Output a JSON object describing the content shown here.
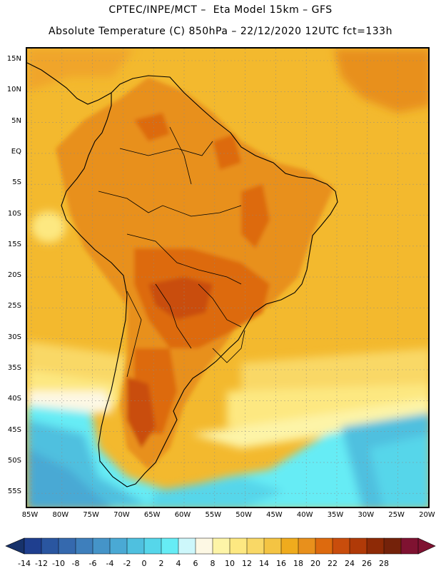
{
  "header": {
    "line1": "CPTEC/INPE/MCT –  Eta Model 15km – GFS",
    "line2": "Absolute Temperature (C) 850hPa – 22/12/2020 12UTC fct=133h"
  },
  "map": {
    "lat_labels": [
      "15N",
      "10N",
      "5N",
      "EQ",
      "5S",
      "10S",
      "15S",
      "20S",
      "25S",
      "30S",
      "35S",
      "40S",
      "45S",
      "50S",
      "55S"
    ],
    "lon_labels": [
      "85W",
      "80W",
      "75W",
      "70W",
      "65W",
      "60W",
      "55W",
      "50W",
      "45W",
      "40W",
      "35W",
      "30W",
      "25W",
      "20W"
    ]
  },
  "colorbar": {
    "labels": [
      "-14",
      "-12",
      "-10",
      "-8",
      "-6",
      "-4",
      "-2",
      "0",
      "2",
      "4",
      "6",
      "8",
      "10",
      "12",
      "14",
      "16",
      "18",
      "20",
      "22",
      "24",
      "26",
      "28"
    ],
    "colors": [
      "#1f3f8f",
      "#2a56a0",
      "#3569ae",
      "#3e7fbc",
      "#4594c8",
      "#4aa9d4",
      "#4fc0df",
      "#56d6ea",
      "#66ecf5",
      "#cdf7fb",
      "#fdf8e4",
      "#fdf4a7",
      "#fde881",
      "#f9d866",
      "#f4c443",
      "#efab1d",
      "#e8901c",
      "#dd6a0e",
      "#c94d0c",
      "#b03a08",
      "#8e2a06",
      "#74220a",
      "#7f1231"
    ],
    "arrow_left_color": "#17326b",
    "arrow_right_color": "#7f1231"
  },
  "chart_data": {
    "type": "heatmap",
    "title": "Absolute Temperature (C) 850hPa – 22/12/2020 12UTC fct=133h",
    "variable": "Temperature (C) at 850hPa",
    "model": "Eta Model 15km – GFS",
    "x_range_lon": [
      -86,
      -19
    ],
    "y_range_lat": [
      -58,
      16.5
    ],
    "color_levels": [
      -14,
      -12,
      -10,
      -8,
      -6,
      -4,
      -2,
      0,
      2,
      4,
      6,
      8,
      10,
      12,
      14,
      16,
      18,
      20,
      22,
      24,
      26,
      28
    ]
  }
}
